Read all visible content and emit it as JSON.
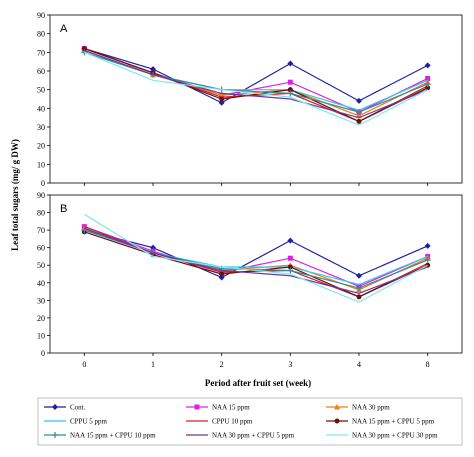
{
  "figure": {
    "ylabel": "Leaf total sugars (mg/ g DW)",
    "xlabel": "Period after fruit set (week)"
  },
  "colors": {
    "Cont.": "#1f1fa0",
    "NAA 15 ppm": "#e020e0",
    "NAA 30 ppm": "#f08010",
    "CPPU 5 ppm": "#30c8e8",
    "CPPU 10 ppm": "#d02020",
    "NAA 15 ppm + CPPU 5 ppm": "#6a1010",
    "NAA 15 ppm + CPPU 10 ppm": "#3a8a9a",
    "NAA 30 ppm + CPPU 5 ppm": "#6a3aa0",
    "NAA 30 ppm + CPPU 30 ppm": "#80e8f0"
  },
  "markers": {
    "Cont.": "diamond",
    "NAA 15 ppm": "square",
    "NAA 30 ppm": "triangle",
    "CPPU 5 ppm": "none",
    "CPPU 10 ppm": "none",
    "NAA 15 ppm + CPPU 5 ppm": "circle",
    "NAA 15 ppm + CPPU 10 ppm": "plus",
    "NAA 30 ppm + CPPU 5 ppm": "none",
    "NAA 30 ppm + CPPU 30 ppm": "none"
  },
  "chart_data": [
    {
      "type": "line",
      "panel": "A",
      "x": [
        "0",
        "1",
        "2",
        "3",
        "4",
        "8"
      ],
      "ylim": [
        0,
        90
      ],
      "yticks": [
        0,
        10,
        20,
        30,
        40,
        50,
        60,
        70,
        80,
        90
      ],
      "ylabel": "Leaf total sugars (mg/ g DW)",
      "xlabel": "",
      "series": [
        {
          "name": "Cont.",
          "values": [
            72,
            61,
            43,
            64,
            44,
            63
          ]
        },
        {
          "name": "NAA 15 ppm",
          "values": [
            72,
            59,
            47,
            54,
            38,
            56
          ]
        },
        {
          "name": "NAA 30 ppm",
          "values": [
            71,
            58,
            47,
            50,
            36,
            54
          ]
        },
        {
          "name": "CPPU 5 ppm",
          "values": [
            70,
            58,
            50,
            50,
            39,
            55
          ]
        },
        {
          "name": "CPPU 10 ppm",
          "values": [
            72,
            59,
            46,
            48,
            33,
            52
          ]
        },
        {
          "name": "NAA 15 ppm + CPPU 5 ppm",
          "values": [
            72,
            59,
            45,
            50,
            33,
            51
          ]
        },
        {
          "name": "NAA 15 ppm + CPPU 10 ppm",
          "values": [
            70,
            58,
            50,
            48,
            38,
            53
          ]
        },
        {
          "name": "NAA 30 ppm + CPPU 5 ppm",
          "values": [
            71,
            58,
            48,
            45,
            35,
            50
          ]
        },
        {
          "name": "NAA 30 ppm + CPPU 30 ppm",
          "values": [
            70,
            55,
            50,
            46,
            31,
            50
          ]
        }
      ]
    },
    {
      "type": "line",
      "panel": "B",
      "x": [
        "0",
        "1",
        "2",
        "3",
        "4",
        "8"
      ],
      "ylim": [
        0,
        90
      ],
      "yticks": [
        0,
        10,
        20,
        30,
        40,
        50,
        60,
        70,
        80,
        90
      ],
      "ylabel": "Leaf total sugars (mg/ g DW)",
      "xlabel": "Period after fruit set (week)",
      "series": [
        {
          "name": "Cont.",
          "values": [
            70,
            60,
            43,
            64,
            44,
            61
          ]
        },
        {
          "name": "NAA 15 ppm",
          "values": [
            72,
            58,
            46,
            54,
            38,
            55
          ]
        },
        {
          "name": "NAA 30 ppm",
          "values": [
            71,
            57,
            47,
            50,
            36,
            54
          ]
        },
        {
          "name": "CPPU 5 ppm",
          "values": [
            70,
            57,
            49,
            49,
            39,
            55
          ]
        },
        {
          "name": "CPPU 10 ppm",
          "values": [
            72,
            57,
            46,
            47,
            32,
            51
          ]
        },
        {
          "name": "NAA 15 ppm + CPPU 5 ppm",
          "values": [
            69,
            56,
            45,
            49,
            32,
            50
          ]
        },
        {
          "name": "NAA 15 ppm + CPPU 10 ppm",
          "values": [
            70,
            57,
            48,
            47,
            37,
            53
          ]
        },
        {
          "name": "NAA 30 ppm + CPPU 5 ppm",
          "values": [
            71,
            57,
            47,
            44,
            34,
            49
          ]
        },
        {
          "name": "NAA 30 ppm + CPPU 30 ppm",
          "values": [
            79,
            55,
            49,
            45,
            29,
            50
          ]
        }
      ]
    }
  ],
  "legend": {
    "items": [
      "Cont.",
      "NAA 15 ppm",
      "NAA 30 ppm",
      "CPPU 5 ppm",
      "CPPU 10 ppm",
      "NAA 15 ppm + CPPU 5 ppm",
      "NAA 15 ppm + CPPU 10 ppm",
      "NAA 30 ppm + CPPU 5 ppm",
      "NAA 30 ppm + CPPU 30 ppm"
    ],
    "labels": [
      "Cont.",
      "NAA 15 ppm",
      "NAA 30 ppm",
      "CPPU 5 ppm",
      "CPPU 10 ppm",
      "NAA 15 ppm + CPPU 5 ppm",
      "NAA 15 ppm + CPPU 10 ppm",
      "NAA 30 ppm + CPPU 5 ppm",
      "NAA 30 ppm + CPPU 30 ppm"
    ]
  }
}
